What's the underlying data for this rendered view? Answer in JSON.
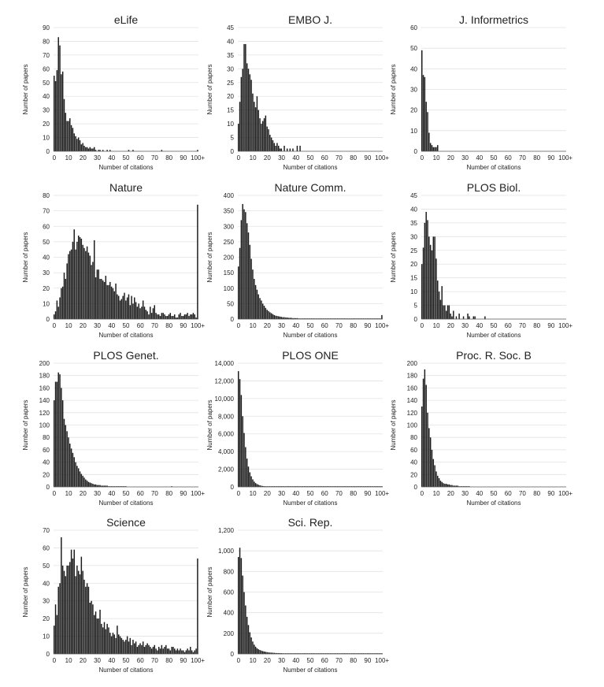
{
  "chart_data": [
    {
      "type": "bar",
      "title": "eLife",
      "xlabel": "Number of citations",
      "ylabel": "Number of papers",
      "ylim": [
        0,
        90
      ],
      "yticks": [
        "0",
        "10",
        "20",
        "30",
        "40",
        "50",
        "60",
        "70",
        "80",
        "90"
      ],
      "xticks": [
        "0",
        "10",
        "20",
        "30",
        "40",
        "50",
        "60",
        "70",
        "80",
        "90",
        "100+"
      ],
      "values": [
        55,
        51,
        59,
        83,
        77,
        56,
        58,
        38,
        28,
        22,
        22,
        24,
        19,
        17,
        13,
        11,
        9,
        10,
        8,
        5,
        6,
        4,
        3,
        3,
        2,
        3,
        2,
        2,
        3,
        1,
        0,
        1,
        1,
        0,
        1,
        0,
        0,
        1,
        0,
        1,
        0,
        0,
        0,
        0,
        0,
        0,
        0,
        0,
        0,
        0,
        0,
        0,
        1,
        0,
        0,
        1,
        0,
        0,
        0,
        0,
        0,
        0,
        0,
        0,
        0,
        0,
        0,
        0,
        0,
        0,
        0,
        0,
        0,
        0,
        0,
        1,
        0,
        0,
        0,
        0,
        0,
        0,
        0,
        0,
        0,
        0,
        0,
        0,
        0,
        0,
        0,
        0,
        0,
        0,
        0,
        0,
        0,
        0,
        0,
        0,
        1
      ]
    },
    {
      "type": "bar",
      "title": "EMBO J.",
      "xlabel": "Number of citations",
      "ylabel": "Number of papers",
      "ylim": [
        0,
        45
      ],
      "yticks": [
        "0",
        "5",
        "10",
        "15",
        "20",
        "25",
        "30",
        "35",
        "40",
        "45"
      ],
      "xticks": [
        "0",
        "10",
        "20",
        "30",
        "40",
        "50",
        "60",
        "70",
        "80",
        "90",
        "100+"
      ],
      "values": [
        10,
        18,
        27,
        30,
        39,
        39,
        32,
        30,
        28,
        26,
        21,
        18,
        16,
        20,
        15,
        12,
        10,
        11,
        12,
        13,
        9,
        8,
        6,
        5,
        4,
        3,
        2,
        3,
        2,
        1,
        1,
        0,
        2,
        0,
        1,
        0,
        1,
        0,
        1,
        0,
        0,
        2,
        0,
        2,
        0,
        0,
        0,
        0,
        0,
        0,
        0,
        0,
        0,
        0,
        0,
        0,
        0,
        0,
        0,
        0,
        0,
        0,
        0,
        0,
        0,
        0,
        0,
        0,
        0,
        0,
        0,
        0,
        0,
        0,
        0,
        0,
        0,
        0,
        0,
        0,
        0,
        0,
        0,
        0,
        0,
        0,
        0,
        0,
        0,
        0,
        0,
        0,
        0,
        0,
        0,
        0,
        0,
        0,
        0,
        0,
        0
      ]
    },
    {
      "type": "bar",
      "title": "J. Informetrics",
      "xlabel": "Number of citations",
      "ylabel": "Number of papers",
      "ylim": [
        0,
        60
      ],
      "yticks": [
        "0",
        "10",
        "20",
        "30",
        "40",
        "50",
        "60"
      ],
      "xticks": [
        "0",
        "10",
        "20",
        "30",
        "40",
        "50",
        "60",
        "70",
        "80",
        "90",
        "100+"
      ],
      "values": [
        49,
        37,
        36,
        24,
        19,
        9,
        4,
        3,
        2,
        2,
        2,
        3,
        0,
        0,
        0,
        0,
        0,
        0,
        0,
        0,
        0,
        0,
        0,
        0,
        0,
        0,
        0,
        0,
        0,
        0,
        0,
        0,
        0,
        0,
        0,
        0,
        0,
        0,
        0,
        0,
        0,
        0,
        0,
        0,
        0,
        0,
        0,
        0,
        0,
        0,
        0,
        0,
        0,
        0,
        0,
        0,
        0,
        0,
        0,
        0,
        0,
        0,
        0,
        0,
        0,
        0,
        0,
        0,
        0,
        0,
        0,
        0,
        0,
        0,
        0,
        0,
        0,
        0,
        0,
        0,
        0,
        0,
        0,
        0,
        0,
        0,
        0,
        0,
        0,
        0,
        0,
        0,
        0,
        0,
        0,
        0,
        0,
        0,
        0,
        0,
        0
      ]
    },
    {
      "type": "bar",
      "title": "Nature",
      "xlabel": "Number of citations",
      "ylabel": "Number of papers",
      "ylim": [
        0,
        80
      ],
      "yticks": [
        "0",
        "10",
        "20",
        "30",
        "40",
        "50",
        "60",
        "70",
        "80"
      ],
      "xticks": [
        "0",
        "10",
        "20",
        "30",
        "40",
        "50",
        "60",
        "70",
        "80",
        "90",
        "100+"
      ],
      "values": [
        3,
        5,
        12,
        8,
        14,
        20,
        21,
        30,
        26,
        36,
        42,
        44,
        45,
        50,
        58,
        45,
        50,
        54,
        53,
        52,
        48,
        46,
        44,
        47,
        43,
        41,
        35,
        37,
        51,
        27,
        32,
        32,
        26,
        26,
        25,
        24,
        28,
        22,
        22,
        24,
        21,
        20,
        18,
        23,
        16,
        15,
        12,
        13,
        15,
        17,
        12,
        14,
        16,
        9,
        15,
        10,
        14,
        11,
        8,
        10,
        7,
        8,
        12,
        8,
        6,
        5,
        3,
        8,
        4,
        7,
        9,
        4,
        3,
        3,
        2,
        4,
        4,
        3,
        2,
        2,
        3,
        4,
        2,
        2,
        3,
        1,
        1,
        3,
        4,
        2,
        2,
        3,
        3,
        4,
        2,
        3,
        3,
        4,
        3,
        1,
        74
      ]
    },
    {
      "type": "bar",
      "title": "Nature Comm.",
      "xlabel": "Number of citations",
      "ylabel": "Number of papers",
      "ylim": [
        0,
        400
      ],
      "yticks": [
        "0",
        "50",
        "100",
        "150",
        "200",
        "250",
        "300",
        "350",
        "400"
      ],
      "xticks": [
        "0",
        "10",
        "20",
        "30",
        "40",
        "50",
        "60",
        "70",
        "80",
        "90",
        "100+"
      ],
      "values": [
        170,
        230,
        320,
        372,
        355,
        346,
        310,
        280,
        240,
        195,
        160,
        130,
        110,
        95,
        80,
        68,
        60,
        50,
        43,
        36,
        30,
        26,
        22,
        19,
        16,
        13,
        11,
        10,
        9,
        8,
        7,
        6,
        6,
        5,
        5,
        4,
        4,
        4,
        3,
        3,
        3,
        3,
        2,
        2,
        2,
        2,
        2,
        2,
        2,
        1,
        1,
        1,
        1,
        1,
        1,
        1,
        1,
        1,
        1,
        1,
        1,
        1,
        1,
        1,
        1,
        1,
        1,
        1,
        1,
        1,
        1,
        1,
        1,
        1,
        1,
        1,
        1,
        1,
        1,
        1,
        1,
        1,
        1,
        1,
        1,
        1,
        1,
        1,
        1,
        1,
        1,
        1,
        1,
        1,
        1,
        1,
        1,
        1,
        1,
        1,
        13
      ]
    },
    {
      "type": "bar",
      "title": "PLOS Biol.",
      "xlabel": "Number of citations",
      "ylabel": "Number of papers",
      "ylim": [
        0,
        45
      ],
      "yticks": [
        "0",
        "5",
        "10",
        "15",
        "20",
        "25",
        "30",
        "35",
        "40",
        "45"
      ],
      "xticks": [
        "0",
        "10",
        "20",
        "30",
        "40",
        "50",
        "60",
        "70",
        "80",
        "90",
        "100+"
      ],
      "values": [
        20,
        26,
        35,
        39,
        36,
        30,
        27,
        25,
        30,
        30,
        22,
        14,
        10,
        7,
        12,
        5,
        5,
        3,
        5,
        5,
        2,
        1,
        3,
        0,
        1,
        0,
        2,
        0,
        0,
        1,
        0,
        0,
        2,
        1,
        0,
        0,
        1,
        1,
        0,
        0,
        0,
        0,
        0,
        0,
        1,
        0,
        0,
        0,
        0,
        0,
        0,
        0,
        0,
        0,
        0,
        0,
        0,
        0,
        0,
        0,
        0,
        0,
        0,
        0,
        0,
        0,
        0,
        0,
        0,
        0,
        0,
        0,
        0,
        0,
        0,
        0,
        0,
        0,
        0,
        0,
        0,
        0,
        0,
        0,
        0,
        0,
        0,
        0,
        0,
        0,
        0,
        0,
        0,
        0,
        0,
        0,
        0,
        0,
        0,
        0,
        0
      ]
    },
    {
      "type": "bar",
      "title": "PLOS Genet.",
      "xlabel": "Number of citations",
      "ylabel": "Number of papers",
      "ylim": [
        0,
        200
      ],
      "yticks": [
        "0",
        "20",
        "40",
        "60",
        "80",
        "100",
        "120",
        "140",
        "160",
        "180",
        "200"
      ],
      "xticks": [
        "0",
        "10",
        "20",
        "30",
        "40",
        "50",
        "60",
        "70",
        "80",
        "90",
        "100+"
      ],
      "values": [
        140,
        170,
        170,
        185,
        182,
        160,
        140,
        110,
        100,
        90,
        80,
        70,
        62,
        55,
        48,
        40,
        34,
        30,
        25,
        21,
        18,
        15,
        12,
        10,
        8,
        7,
        6,
        5,
        4,
        4,
        3,
        3,
        3,
        2,
        2,
        2,
        2,
        2,
        1,
        1,
        1,
        1,
        1,
        1,
        1,
        1,
        1,
        1,
        1,
        1,
        1,
        0,
        0,
        0,
        0,
        0,
        0,
        0,
        0,
        0,
        0,
        0,
        0,
        0,
        0,
        0,
        0,
        0,
        0,
        0,
        0,
        0,
        0,
        0,
        0,
        0,
        0,
        0,
        0,
        0,
        0,
        0,
        1,
        0,
        0,
        0,
        0,
        0,
        0,
        0,
        0,
        0,
        0,
        0,
        0,
        0,
        0,
        0,
        0,
        0,
        0
      ]
    },
    {
      "type": "bar",
      "title": "PLOS ONE",
      "xlabel": "Number of citations",
      "ylabel": "Number of papers",
      "ylim": [
        0,
        14000
      ],
      "yticks": [
        "0",
        "2,000",
        "4,000",
        "6,000",
        "8,000",
        "10,000",
        "12,000",
        "14,000"
      ],
      "xticks": [
        "0",
        "10",
        "20",
        "30",
        "40",
        "50",
        "60",
        "70",
        "80",
        "90",
        "100+"
      ],
      "values": [
        13100,
        12200,
        10400,
        8000,
        6100,
        4500,
        3200,
        2300,
        1650,
        1200,
        850,
        600,
        430,
        320,
        240,
        180,
        130,
        100,
        75,
        55,
        45,
        35,
        28,
        22,
        18,
        14,
        11,
        9,
        7,
        6,
        5,
        4,
        4,
        3,
        3,
        2,
        2,
        2,
        2,
        1,
        1,
        1,
        1,
        1,
        1,
        1,
        1,
        1,
        1,
        1,
        1,
        1,
        1,
        1,
        1,
        1,
        1,
        1,
        1,
        1,
        1,
        1,
        1,
        1,
        1,
        1,
        1,
        1,
        1,
        1,
        1,
        1,
        1,
        1,
        1,
        1,
        1,
        1,
        1,
        1,
        1,
        1,
        1,
        1,
        1,
        1,
        1,
        1,
        1,
        1,
        1,
        1,
        1,
        1,
        1,
        1,
        1,
        1,
        1,
        1,
        20
      ]
    },
    {
      "type": "bar",
      "title": "Proc. R. Soc. B",
      "xlabel": "Number of citations",
      "ylabel": "Number of papers",
      "ylim": [
        0,
        200
      ],
      "yticks": [
        "0",
        "20",
        "40",
        "60",
        "80",
        "100",
        "120",
        "140",
        "160",
        "180",
        "200"
      ],
      "xticks": [
        "0",
        "10",
        "20",
        "30",
        "40",
        "50",
        "60",
        "70",
        "80",
        "90",
        "100+"
      ],
      "values": [
        130,
        175,
        190,
        165,
        120,
        95,
        80,
        60,
        45,
        35,
        25,
        18,
        14,
        10,
        8,
        6,
        5,
        5,
        4,
        4,
        3,
        3,
        2,
        2,
        2,
        2,
        1,
        1,
        1,
        1,
        1,
        1,
        1,
        1,
        0,
        0,
        0,
        0,
        0,
        0,
        0,
        0,
        0,
        0,
        0,
        0,
        0,
        0,
        0,
        0,
        0,
        0,
        0,
        0,
        0,
        0,
        0,
        0,
        0,
        0,
        0,
        0,
        0,
        0,
        0,
        0,
        0,
        0,
        0,
        0,
        0,
        0,
        0,
        0,
        0,
        0,
        0,
        0,
        0,
        0,
        0,
        0,
        0,
        0,
        0,
        0,
        0,
        0,
        0,
        0,
        0,
        0,
        0,
        0,
        0,
        0,
        0,
        0,
        0,
        0,
        0
      ]
    },
    {
      "type": "bar",
      "title": "Science",
      "xlabel": "Number of citations",
      "ylabel": "Number of papers",
      "ylim": [
        0,
        70
      ],
      "yticks": [
        "0",
        "10",
        "20",
        "30",
        "40",
        "50",
        "60",
        "70"
      ],
      "xticks": [
        "0",
        "10",
        "20",
        "30",
        "40",
        "50",
        "60",
        "70",
        "80",
        "90",
        "100+"
      ],
      "values": [
        16,
        28,
        22,
        38,
        40,
        66,
        50,
        47,
        44,
        50,
        50,
        52,
        59,
        54,
        59,
        44,
        50,
        47,
        45,
        55,
        47,
        42,
        38,
        40,
        38,
        29,
        30,
        28,
        22,
        24,
        20,
        20,
        25,
        17,
        15,
        18,
        14,
        17,
        15,
        12,
        10,
        12,
        11,
        9,
        16,
        11,
        10,
        9,
        8,
        7,
        8,
        10,
        7,
        9,
        5,
        8,
        6,
        7,
        4,
        5,
        6,
        5,
        7,
        4,
        5,
        6,
        5,
        4,
        3,
        4,
        5,
        3,
        2,
        4,
        3,
        5,
        3,
        4,
        5,
        3,
        3,
        2,
        4,
        4,
        3,
        2,
        3,
        2,
        3,
        2,
        2,
        1,
        2,
        3,
        2,
        4,
        2,
        1,
        2,
        3,
        54
      ]
    },
    {
      "type": "bar",
      "title": "Sci. Rep.",
      "xlabel": "Number of citations",
      "ylabel": "Number of papers",
      "ylim": [
        0,
        1200
      ],
      "yticks": [
        "0",
        "200",
        "400",
        "600",
        "800",
        "1,000",
        "1,200"
      ],
      "xticks": [
        "0",
        "10",
        "20",
        "30",
        "40",
        "50",
        "60",
        "70",
        "80",
        "90",
        "100+"
      ],
      "values": [
        940,
        1030,
        930,
        760,
        600,
        470,
        360,
        280,
        210,
        160,
        120,
        90,
        70,
        55,
        45,
        38,
        32,
        27,
        23,
        20,
        17,
        15,
        13,
        12,
        11,
        10,
        9,
        8,
        8,
        7,
        7,
        6,
        6,
        5,
        5,
        5,
        5,
        4,
        4,
        4,
        4,
        4,
        3,
        3,
        3,
        3,
        3,
        3,
        3,
        3,
        3,
        3,
        2,
        2,
        2,
        2,
        2,
        2,
        2,
        2,
        2,
        2,
        2,
        2,
        2,
        2,
        2,
        2,
        2,
        2,
        2,
        2,
        2,
        2,
        2,
        2,
        2,
        2,
        2,
        2,
        2,
        2,
        2,
        2,
        2,
        2,
        2,
        2,
        2,
        2,
        2,
        2,
        2,
        2,
        2,
        2,
        2,
        2,
        2,
        2,
        5
      ]
    }
  ]
}
